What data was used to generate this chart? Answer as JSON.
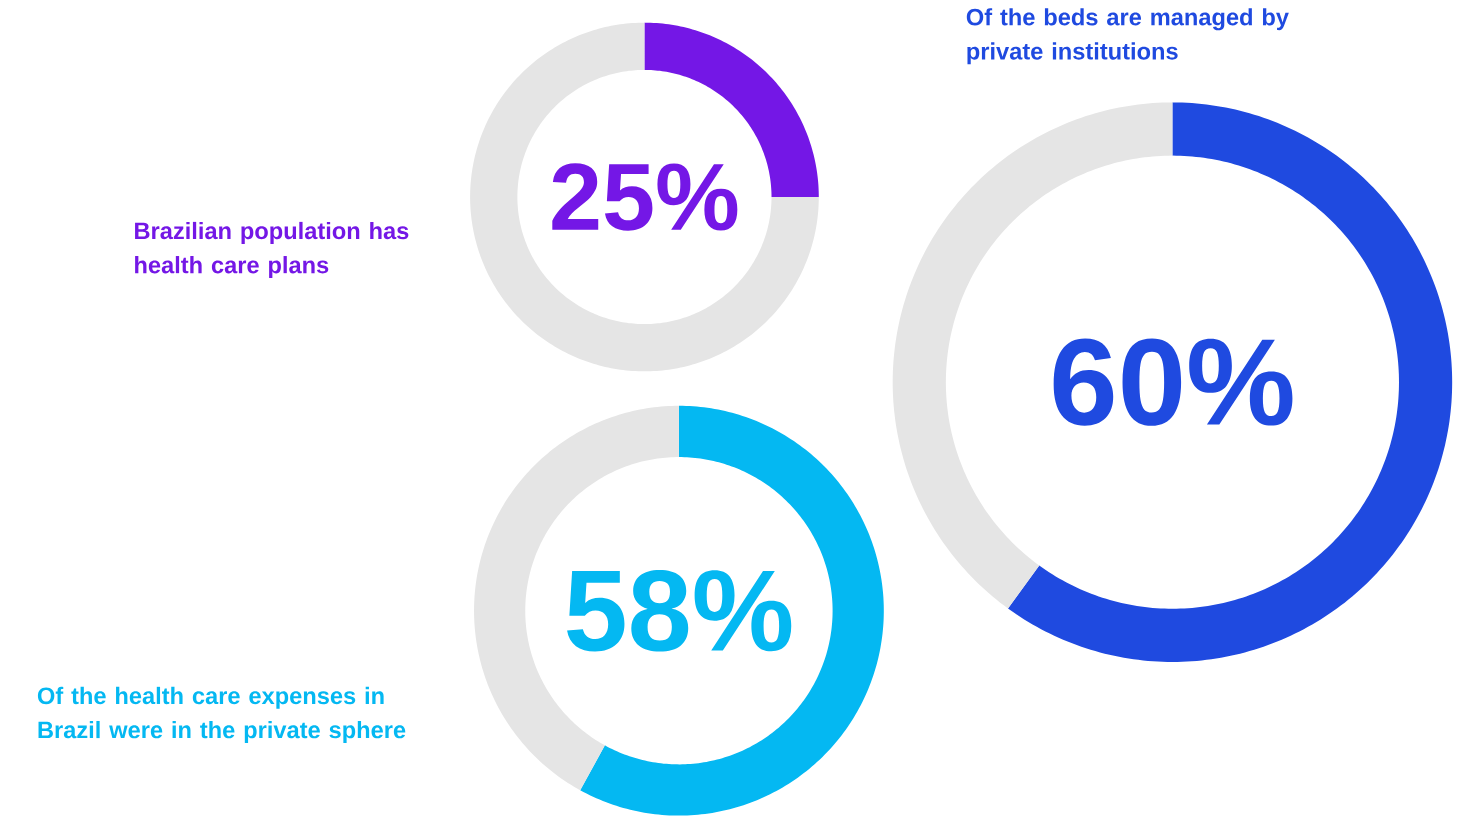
{
  "chart_data": [
    {
      "type": "donut",
      "categories": [
        null,
        null
      ],
      "values": [
        25,
        75
      ],
      "colors": [
        "#7417e6",
        "#e5e5e5"
      ],
      "value_labels": [
        "25%",
        null
      ],
      "annotations": [
        "Brazilian population has health care plans"
      ]
    },
    {
      "type": "donut",
      "categories": [
        null,
        null
      ],
      "values": [
        58,
        42
      ],
      "colors": [
        "#04b8f2",
        "#e5e5e5"
      ],
      "value_labels": [
        "58%",
        null
      ],
      "annotations": [
        "Of the health care expenses in Brazil were in the private sphere"
      ]
    },
    {
      "type": "donut",
      "categories": [
        null,
        null
      ],
      "values": [
        60,
        40
      ],
      "colors": [
        "#1f4ae0",
        "#e5e5e5"
      ],
      "value_labels": [
        "60%",
        null
      ],
      "annotations": [
        "Of the beds are managed by private institutions"
      ]
    }
  ]
}
